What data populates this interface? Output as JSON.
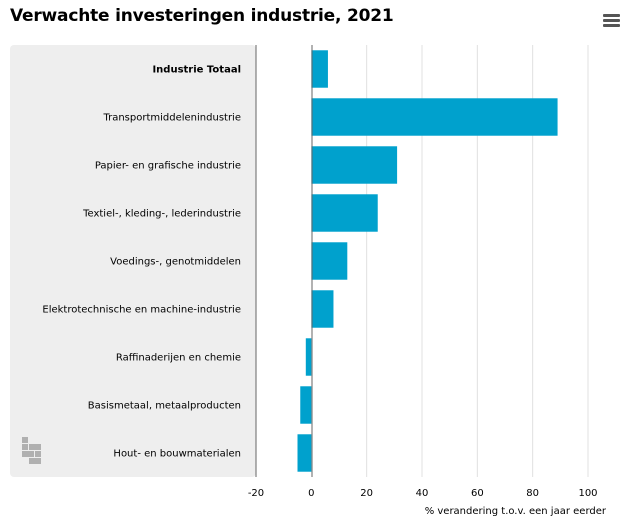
{
  "title": "Verwachte investeringen industrie, 2021",
  "icons": {
    "menu": "hamburger-menu-icon",
    "logo": "cbs-logo-icon"
  },
  "colors": {
    "bar": "#00a1cd",
    "panel": "#eeeeee",
    "grid": "#e0e0e0",
    "axis": "#666666"
  },
  "chart_data": {
    "type": "bar",
    "orientation": "horizontal",
    "categories": [
      "Industrie Totaal",
      "Transportmiddelenindustrie",
      "Papier- en grafische industrie",
      "Textiel-, kleding-, lederindustrie",
      "Voedings-, genotmiddelen",
      "Elektrotechnische en machine-industrie",
      "Raffinaderijen en chemie",
      "Basismetaal, metaalproducten",
      "Hout- en bouwmaterialen"
    ],
    "highlight_category": "Industrie Totaal",
    "values": [
      6,
      89,
      31,
      24,
      13,
      8,
      -2,
      -4,
      -5
    ],
    "xlabel": "% verandering t.o.v. een jaar eerder",
    "xlim": [
      -20,
      100
    ],
    "xticks": [
      -20,
      0,
      20,
      40,
      60,
      80,
      100
    ],
    "grid": true
  }
}
